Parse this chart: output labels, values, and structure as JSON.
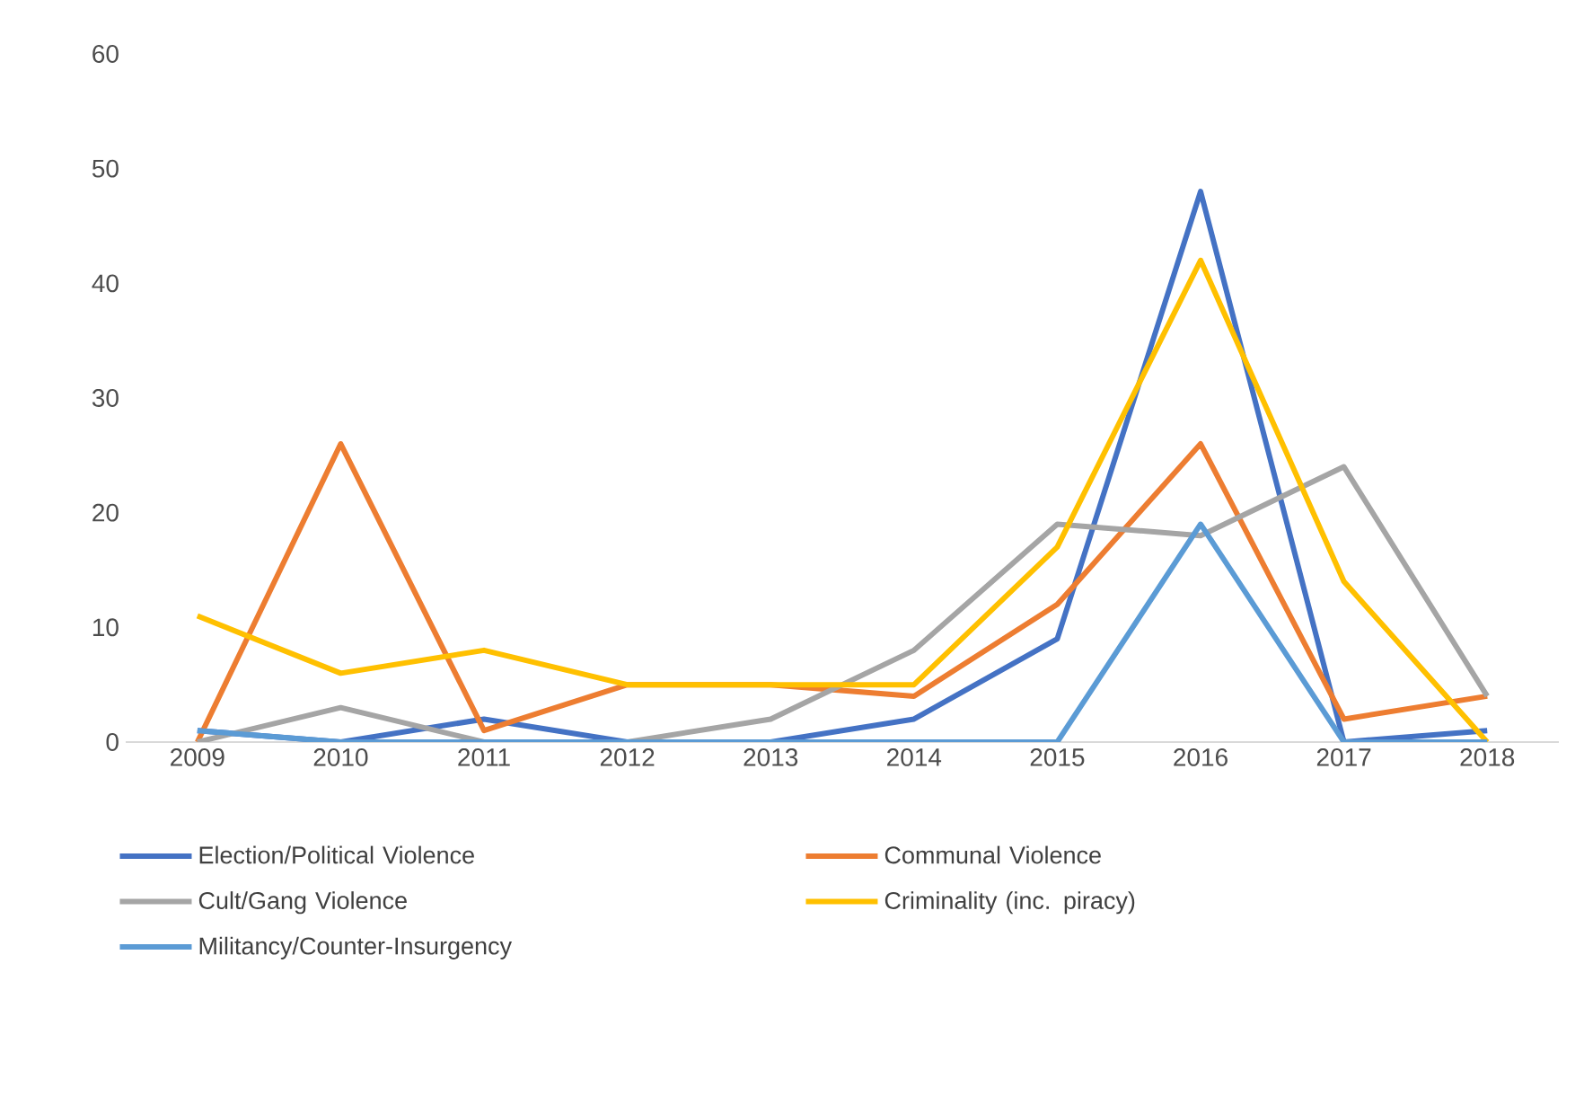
{
  "chart_data": {
    "type": "line",
    "categories": [
      "2009",
      "2010",
      "2011",
      "2012",
      "2013",
      "2014",
      "2015",
      "2016",
      "2017",
      "2018"
    ],
    "ylim": [
      0,
      60
    ],
    "yticks": [
      0,
      10,
      20,
      30,
      40,
      50,
      60
    ],
    "legend": "bottom",
    "grid": false,
    "marker": "none",
    "line_style": "solid",
    "series": [
      {
        "name": "Election/Political Violence",
        "color": "#4472c4",
        "values": [
          1,
          0,
          2,
          0,
          0,
          2,
          9,
          48,
          0,
          1
        ]
      },
      {
        "name": "Communal Violence",
        "color": "#ed7d31",
        "values": [
          0,
          26,
          1,
          5,
          5,
          4,
          12,
          26,
          2,
          4
        ]
      },
      {
        "name": "Cult/Gang Violence",
        "color": "#a5a5a5",
        "values": [
          0,
          3,
          0,
          0,
          2,
          8,
          19,
          18,
          24,
          4
        ]
      },
      {
        "name": "Criminality (inc. piracy)",
        "color": "#ffc000",
        "values": [
          11,
          6,
          8,
          5,
          5,
          5,
          17,
          42,
          14,
          0
        ]
      },
      {
        "name": "Militancy/Counter-Insurgency",
        "color": "#5b9bd5",
        "values": [
          1,
          0,
          0,
          0,
          0,
          0,
          0,
          19,
          0,
          0
        ]
      }
    ]
  }
}
